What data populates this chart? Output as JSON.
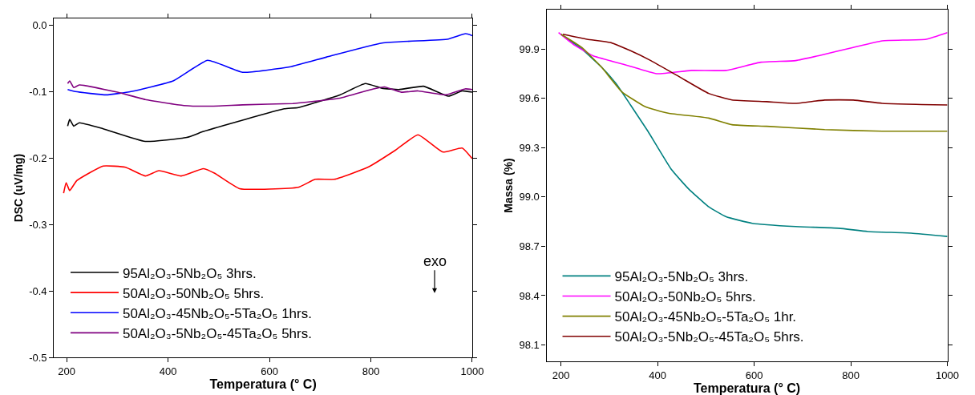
{
  "chart_data": [
    {
      "type": "line",
      "xlabel": "Temperatura (° C)",
      "ylabel": "DSC (uV/mg)",
      "xlim": [
        175,
        1000
      ],
      "ylim": [
        -0.5,
        0.01
      ],
      "xticks": [
        200,
        400,
        600,
        800,
        1000
      ],
      "yticks": [
        {
          "value": 0,
          "label": "0.0"
        },
        -0.1,
        -0.2,
        -0.3,
        -0.4,
        -0.5
      ],
      "legend": "bottom left",
      "annotations": [
        "exo"
      ],
      "series": [
        {
          "name": "95Al₂O₃-5Nb₂O₅ 3hrs.",
          "color": "#000000",
          "x": [
            202,
            206,
            214,
            225,
            272,
            355,
            437,
            470,
            547,
            629,
            657,
            739,
            789,
            822,
            855,
            904,
            953,
            980,
            1000
          ],
          "values": [
            -0.152,
            -0.142,
            -0.152,
            -0.147,
            -0.156,
            -0.175,
            -0.169,
            -0.16,
            -0.143,
            -0.126,
            -0.124,
            -0.105,
            -0.088,
            -0.095,
            -0.097,
            -0.092,
            -0.107,
            -0.099,
            -0.101
          ]
        },
        {
          "name": "50Al₂O₃-50Nb₂O₅ 5hrs.",
          "color": "#ff0000",
          "x": [
            194,
            199,
            206,
            220,
            272,
            316,
            355,
            382,
            426,
            470,
            492,
            541,
            657,
            690,
            728,
            794,
            849,
            893,
            942,
            980,
            1000
          ],
          "values": [
            -0.253,
            -0.237,
            -0.249,
            -0.234,
            -0.212,
            -0.214,
            -0.227,
            -0.219,
            -0.227,
            -0.216,
            -0.223,
            -0.246,
            -0.244,
            -0.232,
            -0.232,
            -0.214,
            -0.188,
            -0.165,
            -0.191,
            -0.185,
            -0.201
          ]
        },
        {
          "name": "50Al₂O₃-45Nb₂O₅-5Ta₂O₅ 1hrs.",
          "color": "#0000ff",
          "x": [
            202,
            217,
            278,
            327,
            410,
            478,
            547,
            640,
            713,
            822,
            953,
            987,
            1000
          ],
          "values": [
            -0.097,
            -0.1,
            -0.105,
            -0.1,
            -0.084,
            -0.053,
            -0.071,
            -0.063,
            -0.048,
            -0.027,
            -0.021,
            -0.013,
            -0.016
          ]
        },
        {
          "name": "50Al₂O₃-5Nb₂O₅-45Ta₂O₅ 5hrs.",
          "color": "#800080",
          "x": [
            202,
            206,
            214,
            225,
            300,
            355,
            431,
            481,
            547,
            646,
            674,
            739,
            805,
            827,
            860,
            893,
            948,
            986,
            1000
          ],
          "values": [
            -0.088,
            -0.084,
            -0.094,
            -0.09,
            -0.101,
            -0.112,
            -0.121,
            -0.122,
            -0.12,
            -0.118,
            -0.116,
            -0.11,
            -0.096,
            -0.093,
            -0.101,
            -0.099,
            -0.105,
            -0.096,
            -0.097
          ]
        }
      ]
    },
    {
      "type": "line",
      "xlabel": "Temperatura (° C)",
      "ylabel": "Massa (%)",
      "xlim": [
        170,
        1000
      ],
      "ylim": [
        98.0,
        100.14
      ],
      "xticks": [
        200,
        400,
        600,
        800,
        1000
      ],
      "yticks": [
        98.1,
        98.4,
        98.7,
        {
          "value": 99.0,
          "label": "99.0"
        },
        99.3,
        99.6,
        99.9
      ],
      "legend": "bottom left",
      "series": [
        {
          "name": "95Al₂O₃-5Nb₂O₅ 3hrs.",
          "color": "#008080",
          "x": [
            200,
            243,
            284,
            314,
            344,
            380,
            428,
            464,
            506,
            542,
            596,
            686,
            775,
            835,
            925,
            1000
          ],
          "values": [
            99.99,
            99.9,
            99.79,
            99.69,
            99.56,
            99.4,
            99.17,
            99.05,
            98.94,
            98.88,
            98.84,
            98.82,
            98.81,
            98.79,
            98.78,
            98.76
          ]
        },
        {
          "name": "50Al₂O₃-50Nb₂O₅ 5hrs.",
          "color": "#ff00ff",
          "x": [
            195,
            225,
            266,
            338,
            398,
            470,
            542,
            614,
            686,
            734,
            805,
            865,
            956,
            1000
          ],
          "values": [
            100.0,
            99.93,
            99.86,
            99.8,
            99.75,
            99.77,
            99.77,
            99.82,
            99.83,
            99.86,
            99.91,
            99.95,
            99.96,
            100.0
          ]
        },
        {
          "name": "50Al₂O₃-45Nb₂O₅-5Ta₂O₅ 1hr.",
          "color": "#808000",
          "x": [
            200,
            243,
            284,
            326,
            374,
            422,
            506,
            554,
            626,
            746,
            865,
            1000
          ],
          "values": [
            99.99,
            99.91,
            99.79,
            99.64,
            99.55,
            99.51,
            99.48,
            99.44,
            99.43,
            99.41,
            99.4,
            99.4
          ]
        },
        {
          "name": "50Al₂O₃-5Nb₂O₅-45Ta₂O₅ 5hrs.",
          "color": "#800000",
          "x": [
            204,
            254,
            302,
            344,
            386,
            446,
            506,
            554,
            626,
            686,
            746,
            805,
            865,
            1000
          ],
          "values": [
            99.99,
            99.96,
            99.94,
            99.89,
            99.83,
            99.73,
            99.63,
            99.59,
            99.58,
            99.57,
            99.59,
            99.59,
            99.57,
            99.56
          ]
        }
      ]
    }
  ]
}
